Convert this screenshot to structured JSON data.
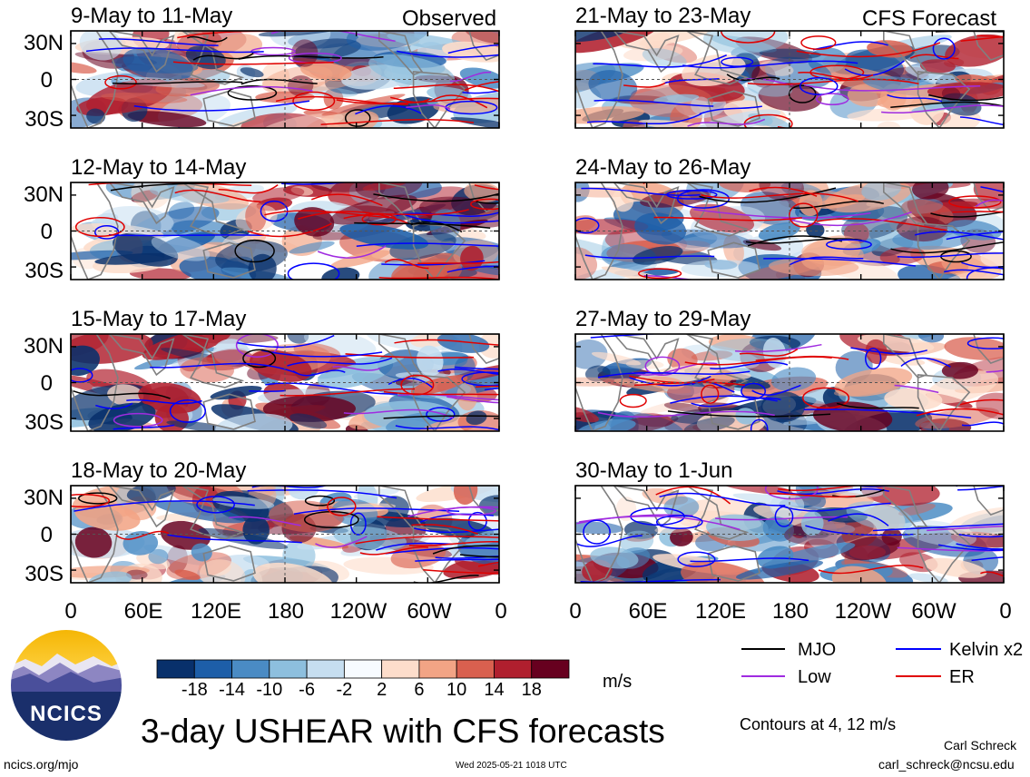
{
  "panels": [
    {
      "title": "9-May to 11-May",
      "tag": "Observed"
    },
    {
      "title": "12-May to 14-May",
      "tag": ""
    },
    {
      "title": "15-May to 17-May",
      "tag": ""
    },
    {
      "title": "18-May to 20-May",
      "tag": ""
    },
    {
      "title": "21-May to 23-May",
      "tag": "CFS Forecast"
    },
    {
      "title": "24-May to 26-May",
      "tag": ""
    },
    {
      "title": "27-May to 29-May",
      "tag": ""
    },
    {
      "title": "30-May to 1-Jun",
      "tag": ""
    }
  ],
  "lat_labels": [
    "30N",
    "0",
    "30S"
  ],
  "lon_labels": [
    "0",
    "60E",
    "120E",
    "180",
    "120W",
    "60W",
    "0"
  ],
  "colorbar": {
    "labels": [
      "-18",
      "-14",
      "-10",
      "-6",
      "-2",
      "2",
      "6",
      "10",
      "14",
      "18"
    ],
    "colors": [
      "#08306b",
      "#1d5ea8",
      "#4a8bc4",
      "#8dbfde",
      "#c6def0",
      "#f7fbff",
      "#fdddcb",
      "#f2a485",
      "#d9604f",
      "#b01f2e",
      "#67001f"
    ],
    "units": "m/s"
  },
  "legend": {
    "items": [
      {
        "label": "MJO",
        "color": "#000000"
      },
      {
        "label": "Kelvin x2",
        "color": "#0000ff"
      },
      {
        "label": "Low",
        "color": "#a02be0"
      },
      {
        "label": "ER",
        "color": "#e00000"
      }
    ],
    "contours_note": "Contours at 4, 12 m/s"
  },
  "title": "3-day USHEAR with CFS forecasts",
  "logo_text": "NCICS",
  "footer": {
    "left": "ncics.org/mjo",
    "center": "Wed 2025-05-21 1018 UTC",
    "author": "Carl Schreck",
    "email": "carl_schreck@ncsu.edu"
  }
}
